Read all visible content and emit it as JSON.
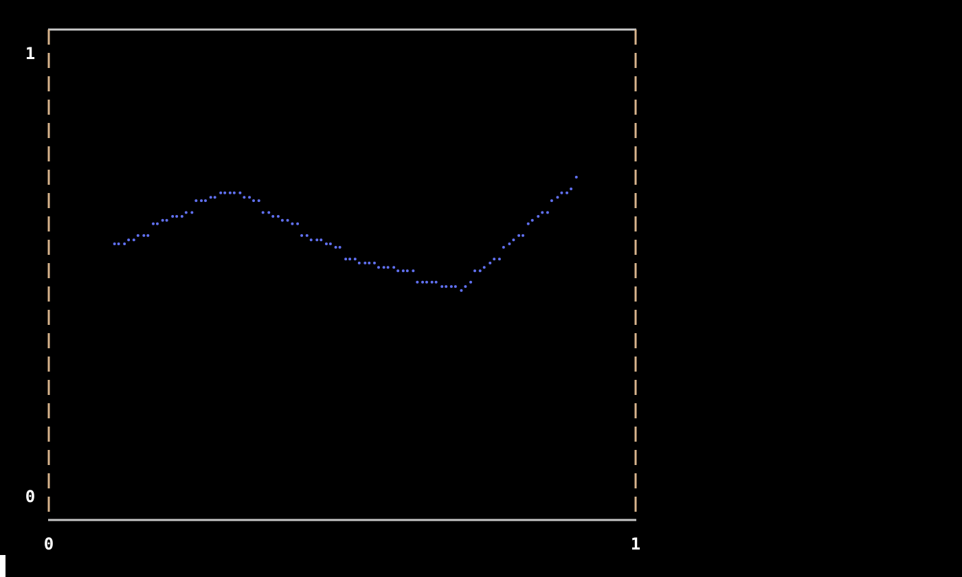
{
  "chart_data": {
    "type": "scatter",
    "title": "",
    "xlabel": "",
    "ylabel": "",
    "xlim": [
      0,
      1
    ],
    "ylim": [
      0,
      1
    ],
    "x_tick_labels": [
      "0",
      "1"
    ],
    "y_tick_labels": [
      "0",
      "1"
    ],
    "grid": false,
    "colors": {
      "points": "#6070f0",
      "frame_h": "#c8c8c8",
      "frame_v": "#d8b48c",
      "labels": "#ffffff"
    },
    "series": [
      {
        "x": [
          0.112,
          0.119,
          0.129,
          0.136,
          0.145,
          0.152,
          0.162,
          0.169,
          0.178,
          0.185,
          0.194,
          0.201,
          0.211,
          0.218,
          0.227,
          0.234,
          0.244,
          0.251,
          0.26,
          0.267,
          0.276,
          0.283,
          0.293,
          0.3,
          0.309,
          0.316,
          0.326,
          0.333,
          0.342,
          0.349,
          0.358,
          0.365,
          0.375,
          0.382,
          0.391,
          0.398,
          0.407,
          0.415,
          0.424,
          0.431,
          0.44,
          0.447,
          0.457,
          0.464,
          0.473,
          0.48,
          0.489,
          0.496,
          0.506,
          0.513,
          0.522,
          0.529,
          0.539,
          0.546,
          0.555,
          0.562,
          0.571,
          0.578,
          0.588,
          0.595,
          0.604,
          0.611,
          0.621,
          0.628,
          0.637,
          0.644,
          0.653,
          0.66,
          0.67,
          0.677,
          0.686,
          0.693,
          0.703,
          0.71,
          0.719,
          0.726,
          0.735,
          0.742,
          0.752,
          0.759,
          0.768,
          0.775,
          0.785,
          0.792,
          0.801,
          0.808,
          0.817,
          0.824,
          0.834,
          0.841,
          0.85,
          0.857,
          0.867,
          0.874,
          0.883,
          0.89,
          0.899
        ],
        "y": [
          0.563,
          0.563,
          0.563,
          0.571,
          0.571,
          0.58,
          0.58,
          0.58,
          0.604,
          0.604,
          0.611,
          0.611,
          0.619,
          0.619,
          0.619,
          0.627,
          0.627,
          0.651,
          0.651,
          0.651,
          0.658,
          0.658,
          0.667,
          0.667,
          0.667,
          0.667,
          0.667,
          0.658,
          0.658,
          0.651,
          0.651,
          0.627,
          0.627,
          0.619,
          0.619,
          0.611,
          0.611,
          0.604,
          0.604,
          0.58,
          0.58,
          0.571,
          0.571,
          0.571,
          0.563,
          0.563,
          0.556,
          0.556,
          0.532,
          0.532,
          0.532,
          0.524,
          0.524,
          0.524,
          0.524,
          0.515,
          0.515,
          0.515,
          0.515,
          0.508,
          0.508,
          0.508,
          0.508,
          0.485,
          0.485,
          0.485,
          0.485,
          0.485,
          0.476,
          0.476,
          0.476,
          0.476,
          0.468,
          0.476,
          0.485,
          0.508,
          0.508,
          0.515,
          0.524,
          0.532,
          0.532,
          0.556,
          0.563,
          0.571,
          0.58,
          0.58,
          0.604,
          0.611,
          0.619,
          0.627,
          0.627,
          0.651,
          0.658,
          0.667,
          0.667,
          0.675,
          0.699
        ]
      }
    ]
  }
}
